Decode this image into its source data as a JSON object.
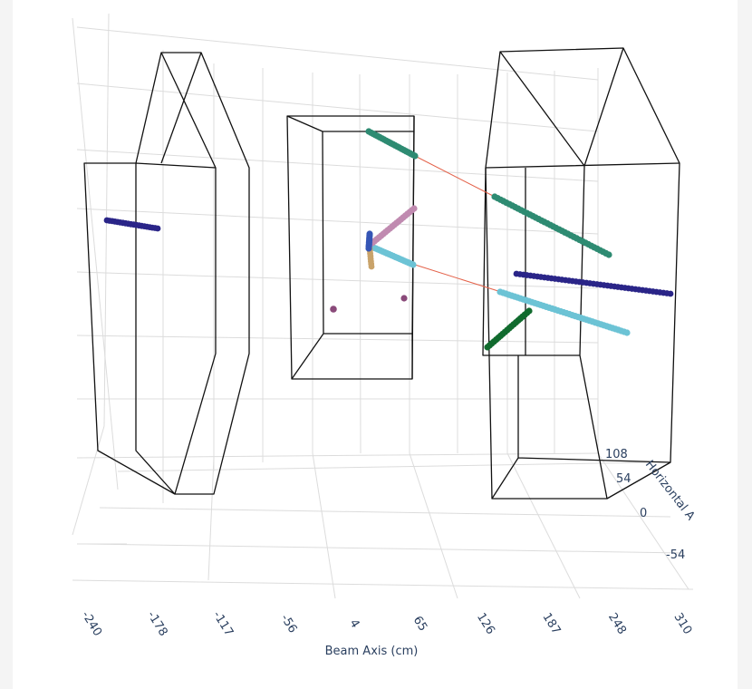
{
  "chart_data": {
    "type": "scatter3d",
    "axes": {
      "beam": {
        "title": "Beam Axis (cm)",
        "ticks": [
          "-240",
          "-178",
          "-117",
          "-56",
          "4",
          "65",
          "126",
          "187",
          "248",
          "310"
        ]
      },
      "horizontal": {
        "title": "Horizontal A",
        "ticks": [
          "108",
          "54",
          "0",
          "-54"
        ]
      }
    },
    "grid": true,
    "legend": "none",
    "colors": {
      "track_green": "#2e8b72",
      "track_cyan": "#6cc3d5",
      "track_navy": "#2a2588",
      "track_pink": "#c08ab0",
      "track_dark_green": "#116b2e",
      "track_tan": "#c9a36a",
      "vertex_blue": "#3555b5",
      "hit_purple": "#8a4a7a",
      "link_line": "#e4624a",
      "detector_outline": "#111111",
      "grid_line": "#dcdcdc"
    }
  }
}
